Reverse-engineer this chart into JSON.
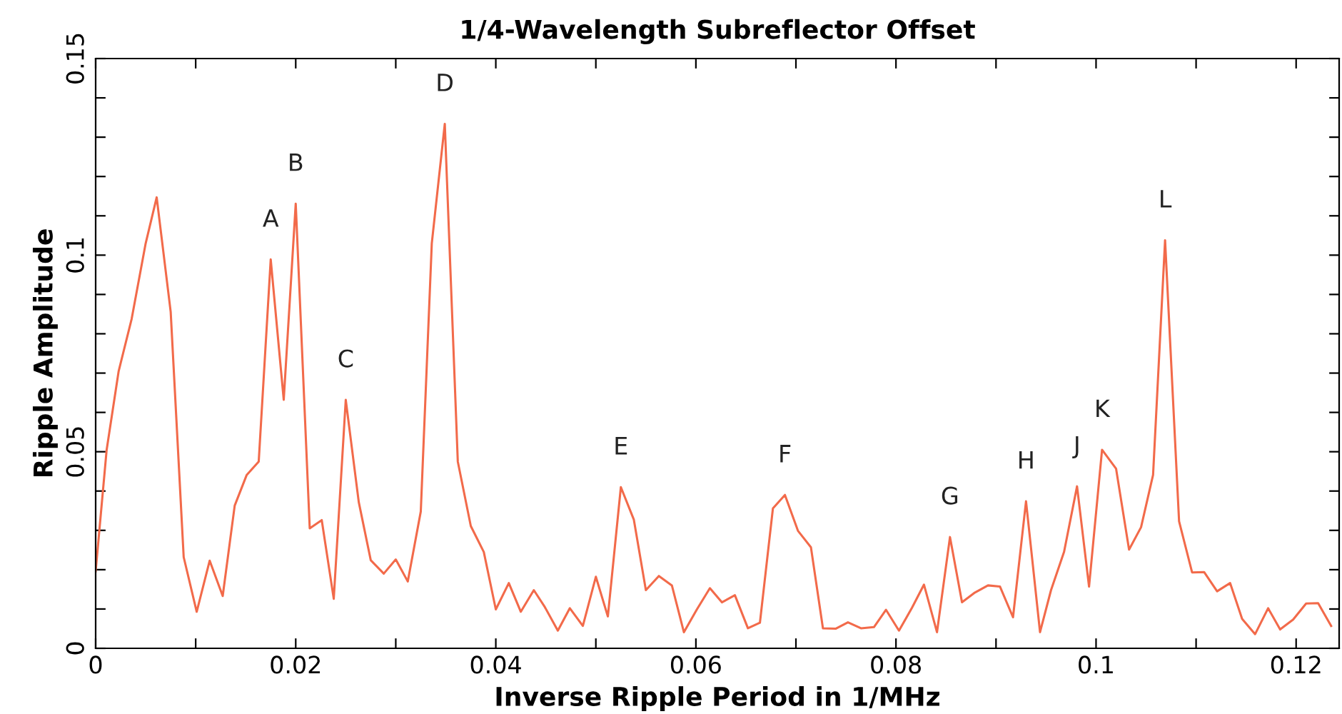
{
  "chart_data": {
    "type": "line",
    "title": "1/4-Wavelength Subreflector Offset",
    "xlabel": "Inverse Ripple Period in 1/MHz",
    "ylabel": "Ripple Amplitude",
    "x": [
      0.0,
      0.0011,
      0.0023,
      0.0036,
      0.005,
      0.0061,
      0.0075,
      0.0088,
      0.0101,
      0.0114,
      0.0127,
      0.0139,
      0.0151,
      0.0163,
      0.0175,
      0.0188,
      0.02,
      0.0214,
      0.0226,
      0.0238,
      0.025,
      0.0263,
      0.0275,
      0.0288,
      0.03,
      0.0312,
      0.0325,
      0.0336,
      0.0349,
      0.0362,
      0.0375,
      0.0388,
      0.04,
      0.0413,
      0.0425,
      0.0438,
      0.0449,
      0.0462,
      0.0474,
      0.0487,
      0.05,
      0.0512,
      0.0525,
      0.0538,
      0.055,
      0.0563,
      0.0576,
      0.0588,
      0.0601,
      0.0614,
      0.0626,
      0.0639,
      0.0652,
      0.0664,
      0.0677,
      0.0689,
      0.0702,
      0.0715,
      0.0727,
      0.074,
      0.0752,
      0.0765,
      0.0778,
      0.079,
      0.0803,
      0.0816,
      0.0828,
      0.0841,
      0.0854,
      0.0866,
      0.0879,
      0.0892,
      0.0904,
      0.0917,
      0.093,
      0.0944,
      0.0955,
      0.0968,
      0.0981,
      0.0993,
      0.1006,
      0.102,
      0.1033,
      0.1045,
      0.1057,
      0.1069,
      0.1083,
      0.1096,
      0.1108,
      0.1121,
      0.1134,
      0.1146,
      0.1159,
      0.1172,
      0.1184,
      0.1197,
      0.121,
      0.1222,
      0.1235
    ],
    "series": [
      {
        "color": "#f26a4a",
        "values": [
          0.0196,
          0.0505,
          0.0705,
          0.0838,
          0.103,
          0.1147,
          0.0856,
          0.0232,
          0.0093,
          0.0223,
          0.0133,
          0.0363,
          0.0441,
          0.0475,
          0.0989,
          0.0632,
          0.1131,
          0.0305,
          0.0326,
          0.0126,
          0.0632,
          0.0372,
          0.0224,
          0.019,
          0.0226,
          0.017,
          0.0348,
          0.103,
          0.1334,
          0.0475,
          0.0311,
          0.0245,
          0.0099,
          0.0166,
          0.0093,
          0.0148,
          0.0105,
          0.0045,
          0.0102,
          0.0057,
          0.0182,
          0.0081,
          0.041,
          0.0327,
          0.0148,
          0.0184,
          0.016,
          0.0041,
          0.0099,
          0.0153,
          0.0117,
          0.0135,
          0.0051,
          0.0065,
          0.0356,
          0.039,
          0.0299,
          0.0257,
          0.0051,
          0.005,
          0.0066,
          0.0051,
          0.0054,
          0.0098,
          0.0045,
          0.0103,
          0.0162,
          0.0041,
          0.0283,
          0.0117,
          0.0142,
          0.016,
          0.0157,
          0.0079,
          0.0374,
          0.0041,
          0.0148,
          0.0245,
          0.0412,
          0.0157,
          0.0505,
          0.0457,
          0.0251,
          0.0308,
          0.0441,
          0.1038,
          0.0323,
          0.0193,
          0.0194,
          0.0145,
          0.0166,
          0.0075,
          0.0036,
          0.0102,
          0.0048,
          0.0073,
          0.0114,
          0.0115,
          0.0057
        ]
      }
    ],
    "xlim": [
      0,
      0.1243
    ],
    "ylim": [
      0,
      0.15
    ],
    "xticks": [
      0,
      {
        "value": 0.01,
        "label": null
      },
      {
        "value": 0.02,
        "label": "0.02"
      },
      {
        "value": 0.03,
        "label": null
      },
      {
        "value": 0.04,
        "label": "0.04"
      },
      {
        "value": 0.05,
        "label": null
      },
      {
        "value": 0.06,
        "label": "0.06"
      },
      {
        "value": 0.07,
        "label": null
      },
      {
        "value": 0.08,
        "label": "0.08"
      },
      {
        "value": 0.09,
        "label": null
      },
      {
        "value": 0.1,
        "label": "0.1"
      },
      {
        "value": 0.11,
        "label": null
      },
      {
        "value": 0.12,
        "label": "0.12"
      }
    ],
    "yticks": [
      0,
      {
        "value": 0.01,
        "label": null
      },
      {
        "value": 0.02,
        "label": null
      },
      {
        "value": 0.03,
        "label": null
      },
      {
        "value": 0.04,
        "label": null
      },
      {
        "value": 0.05,
        "label": "0.05"
      },
      {
        "value": 0.06,
        "label": null
      },
      {
        "value": 0.07,
        "label": null
      },
      {
        "value": 0.08,
        "label": null
      },
      {
        "value": 0.09,
        "label": null
      },
      {
        "value": 0.1,
        "label": "0.1"
      },
      {
        "value": 0.11,
        "label": null
      },
      {
        "value": 0.12,
        "label": null
      },
      {
        "value": 0.13,
        "label": null
      },
      {
        "value": 0.14,
        "label": null
      },
      {
        "value": 0.15,
        "label": "0.15"
      }
    ],
    "grid": false,
    "legend": false,
    "marker": "none",
    "line_style": "solid",
    "annotations": [
      {
        "text": "A",
        "x": 0.0175,
        "y": 0.0989
      },
      {
        "text": "B",
        "x": 0.02,
        "y": 0.1131
      },
      {
        "text": "C",
        "x": 0.025,
        "y": 0.0632
      },
      {
        "text": "D",
        "x": 0.0349,
        "y": 0.1334
      },
      {
        "text": "E",
        "x": 0.0525,
        "y": 0.041
      },
      {
        "text": "F",
        "x": 0.0689,
        "y": 0.039
      },
      {
        "text": "G",
        "x": 0.0854,
        "y": 0.0283
      },
      {
        "text": "H",
        "x": 0.093,
        "y": 0.0374
      },
      {
        "text": "J",
        "x": 0.0981,
        "y": 0.0412
      },
      {
        "text": "K",
        "x": 0.1006,
        "y": 0.0505
      },
      {
        "text": "L",
        "x": 0.1069,
        "y": 0.1038
      }
    ]
  }
}
